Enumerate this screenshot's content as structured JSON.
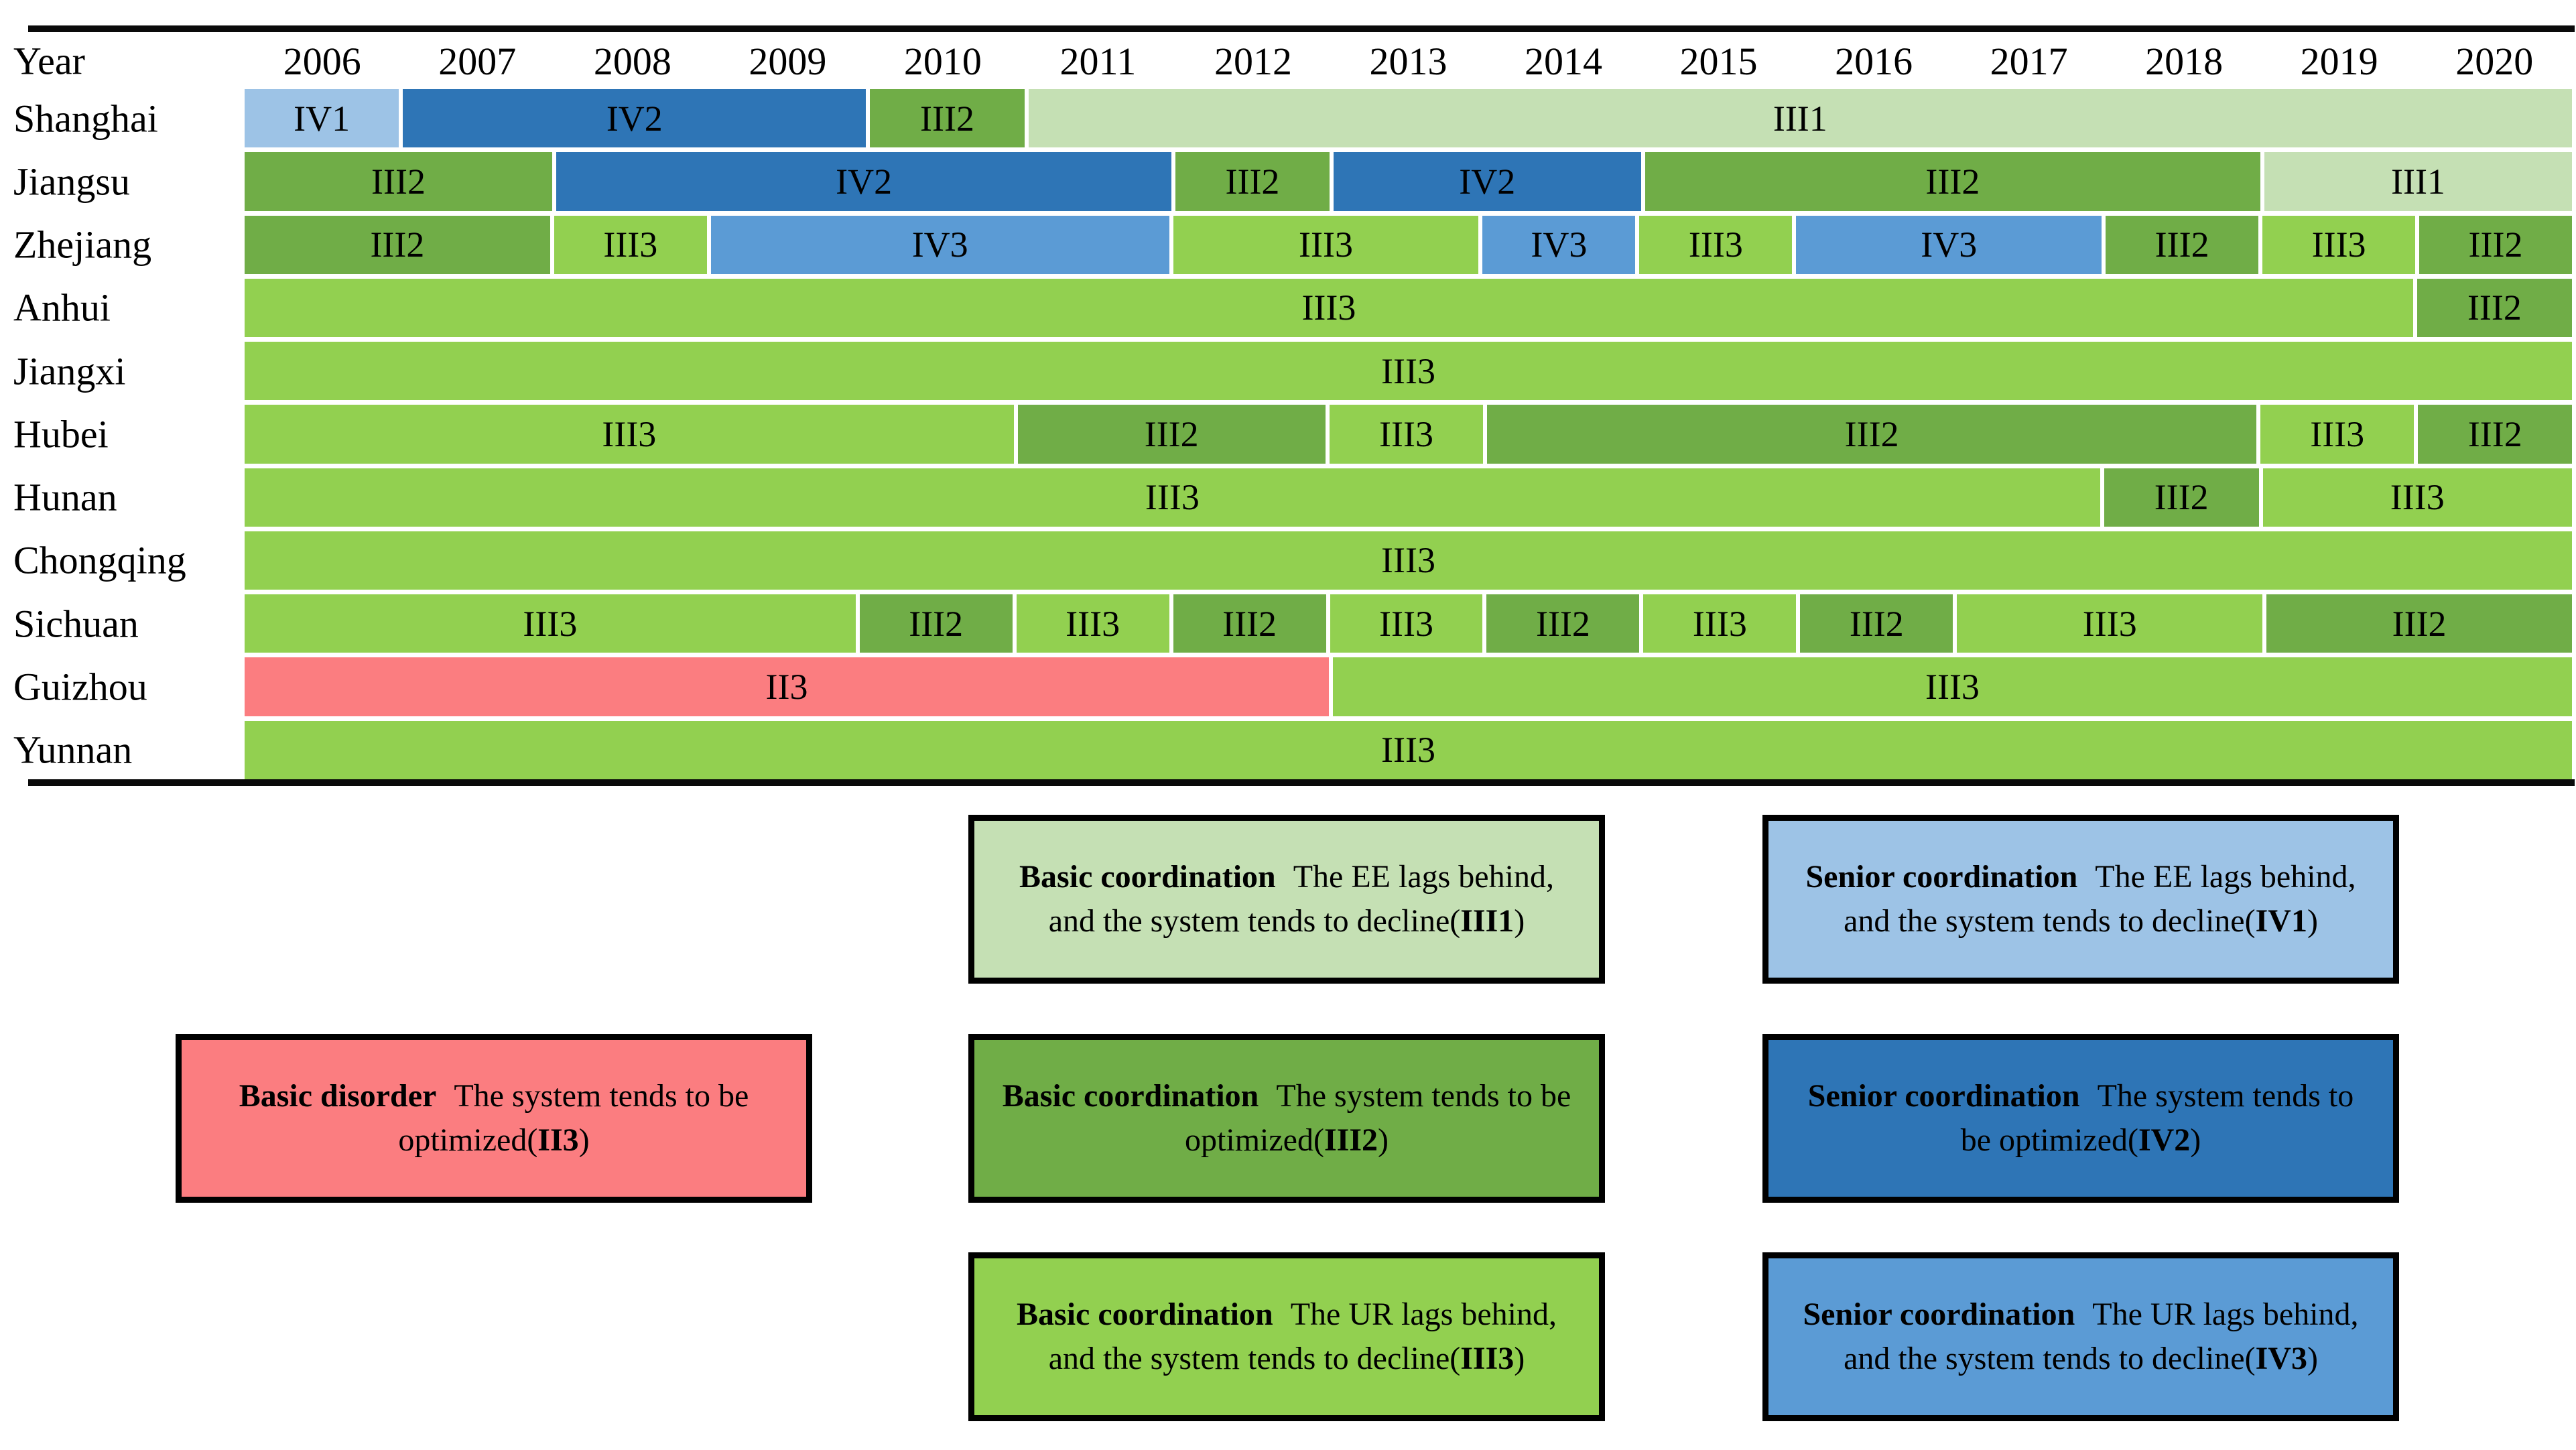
{
  "chart_data": {
    "type": "bar",
    "subtype": "categorical-gantt-timeline",
    "title": "",
    "orientation": "horizontal",
    "grid": false,
    "legend_position": "bottom",
    "x_axis": {
      "title": "Year",
      "range": [
        2006,
        2020
      ],
      "years": [
        2006,
        2007,
        2008,
        2009,
        2010,
        2011,
        2012,
        2013,
        2014,
        2015,
        2016,
        2017,
        2018,
        2019,
        2020
      ]
    },
    "palette": {
      "II3": "#FB7D80",
      "III1": "#C5E0B4",
      "III2": "#70AD47",
      "III3": "#92D050",
      "IV1": "#9DC3E6",
      "IV2": "#2E75B6",
      "IV3": "#5B9BD5"
    },
    "rows": [
      {
        "province": "Shanghai",
        "segments": [
          {
            "state": "IV1",
            "start": 2006,
            "end": 2006
          },
          {
            "state": "IV2",
            "start": 2007,
            "end": 2009
          },
          {
            "state": "III2",
            "start": 2010,
            "end": 2010
          },
          {
            "state": "III1",
            "start": 2011,
            "end": 2020
          }
        ]
      },
      {
        "province": "Jiangsu",
        "segments": [
          {
            "state": "III2",
            "start": 2006,
            "end": 2007
          },
          {
            "state": "IV2",
            "start": 2008,
            "end": 2011
          },
          {
            "state": "III2",
            "start": 2012,
            "end": 2012
          },
          {
            "state": "IV2",
            "start": 2013,
            "end": 2014
          },
          {
            "state": "III2",
            "start": 2015,
            "end": 2018
          },
          {
            "state": "III1",
            "start": 2019,
            "end": 2020
          }
        ]
      },
      {
        "province": "Zhejiang",
        "segments": [
          {
            "state": "III2",
            "start": 2006,
            "end": 2007
          },
          {
            "state": "III3",
            "start": 2008,
            "end": 2008
          },
          {
            "state": "IV3",
            "start": 2009,
            "end": 2011
          },
          {
            "state": "III3",
            "start": 2012,
            "end": 2013
          },
          {
            "state": "IV3",
            "start": 2014,
            "end": 2014
          },
          {
            "state": "III3",
            "start": 2015,
            "end": 2015
          },
          {
            "state": "IV3",
            "start": 2016,
            "end": 2017
          },
          {
            "state": "III2",
            "start": 2018,
            "end": 2018
          },
          {
            "state": "III3",
            "start": 2019,
            "end": 2019
          },
          {
            "state": "III2",
            "start": 2020,
            "end": 2020
          }
        ]
      },
      {
        "province": "Anhui",
        "segments": [
          {
            "state": "III3",
            "start": 2006,
            "end": 2019
          },
          {
            "state": "III2",
            "start": 2020,
            "end": 2020
          }
        ]
      },
      {
        "province": "Jiangxi",
        "segments": [
          {
            "state": "III3",
            "start": 2006,
            "end": 2020
          }
        ]
      },
      {
        "province": "Hubei",
        "segments": [
          {
            "state": "III3",
            "start": 2006,
            "end": 2010
          },
          {
            "state": "III2",
            "start": 2011,
            "end": 2012
          },
          {
            "state": "III3",
            "start": 2013,
            "end": 2013
          },
          {
            "state": "III2",
            "start": 2014,
            "end": 2018
          },
          {
            "state": "III3",
            "start": 2019,
            "end": 2019
          },
          {
            "state": "III2",
            "start": 2020,
            "end": 2020
          }
        ]
      },
      {
        "province": "Hunan",
        "segments": [
          {
            "state": "III3",
            "start": 2006,
            "end": 2017
          },
          {
            "state": "III2",
            "start": 2018,
            "end": 2018
          },
          {
            "state": "III3",
            "start": 2019,
            "end": 2020
          }
        ]
      },
      {
        "province": "Chongqing",
        "segments": [
          {
            "state": "III3",
            "start": 2006,
            "end": 2020
          }
        ]
      },
      {
        "province": "Sichuan",
        "segments": [
          {
            "state": "III3",
            "start": 2006,
            "end": 2009
          },
          {
            "state": "III2",
            "start": 2010,
            "end": 2010
          },
          {
            "state": "III3",
            "start": 2011,
            "end": 2011
          },
          {
            "state": "III2",
            "start": 2012,
            "end": 2012
          },
          {
            "state": "III3",
            "start": 2013,
            "end": 2013
          },
          {
            "state": "III2",
            "start": 2014,
            "end": 2014
          },
          {
            "state": "III3",
            "start": 2015,
            "end": 2015
          },
          {
            "state": "III2",
            "start": 2016,
            "end": 2016
          },
          {
            "state": "III3",
            "start": 2017,
            "end": 2018
          },
          {
            "state": "III2",
            "start": 2019,
            "end": 2020
          }
        ]
      },
      {
        "province": "Guizhou",
        "segments": [
          {
            "state": "II3",
            "start": 2006,
            "end": 2012
          },
          {
            "state": "III3",
            "start": 2013,
            "end": 2020
          }
        ]
      },
      {
        "province": "Yunnan",
        "segments": [
          {
            "state": "III3",
            "start": 2006,
            "end": 2020
          }
        ]
      }
    ]
  },
  "legend": {
    "items": [
      {
        "code": "III1",
        "lead": "Basic coordination",
        "text": "The EE lags behind, and the system tends to decline(",
        "close": ")",
        "fill": "#C5E0B4"
      },
      {
        "code": "IV1",
        "lead": "Senior coordination",
        "text": "The EE lags behind, and the system tends to decline(",
        "close": ")",
        "fill": "#9DC3E6"
      },
      {
        "code": "II3",
        "lead": "Basic disorder",
        "text": "The system tends to be optimized(",
        "close": ")",
        "fill": "#FB7D80"
      },
      {
        "code": "III2",
        "lead": "Basic coordination",
        "text": "The system tends to be optimized(",
        "close": ")",
        "fill": "#70AD47"
      },
      {
        "code": "IV2",
        "lead": "Senior coordination",
        "text": "The system tends to be optimized(",
        "close": ")",
        "fill": "#2E75B6"
      },
      {
        "code": "III3",
        "lead": "Basic coordination",
        "text": "The UR lags behind, and the system tends to decline(",
        "close": ")",
        "fill": "#92D050"
      },
      {
        "code": "IV3",
        "lead": "Senior coordination",
        "text": "The UR lags behind, and the system tends to decline(",
        "close": ")",
        "fill": "#5B9BD5"
      }
    ]
  }
}
